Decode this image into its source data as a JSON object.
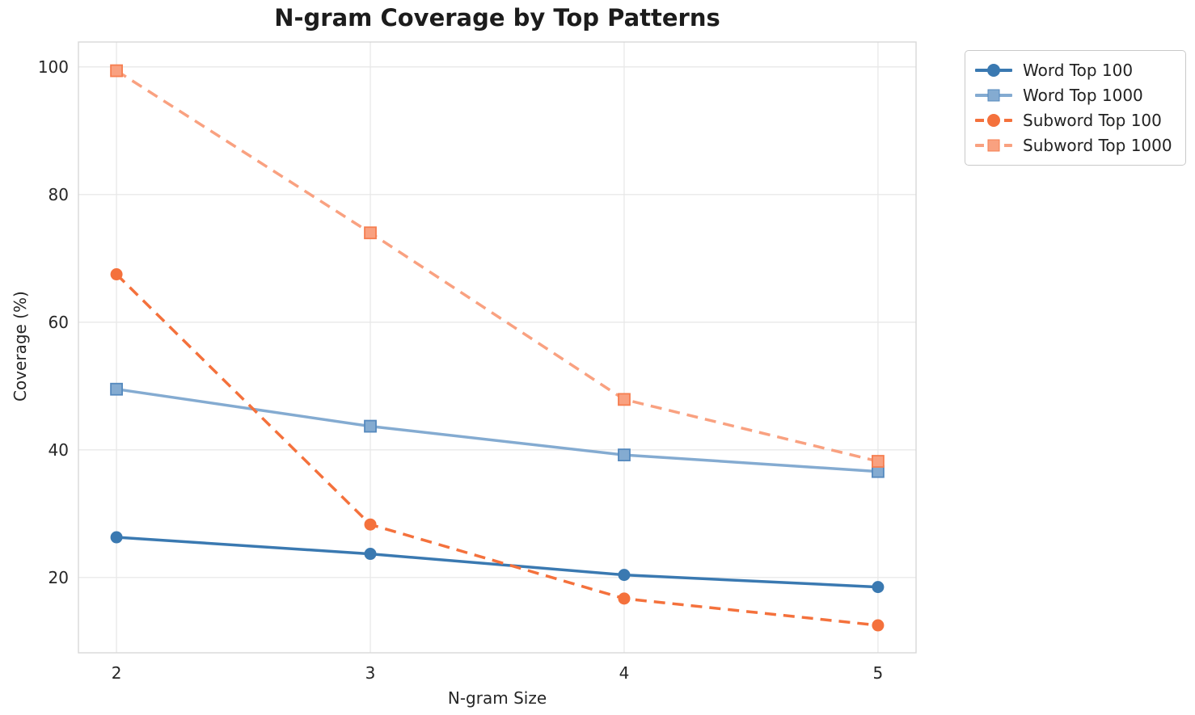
{
  "chart_data": {
    "type": "line",
    "title": "N-gram Coverage by Top Patterns",
    "xlabel": "N-gram Size",
    "ylabel": "Coverage (%)",
    "x": [
      2,
      3,
      4,
      5
    ],
    "xticks": [
      "2",
      "3",
      "4",
      "5"
    ],
    "yticks": [
      "20",
      "40",
      "60",
      "80",
      "100"
    ],
    "ytick_values": [
      20,
      40,
      60,
      80,
      100
    ],
    "xlim": [
      1.85,
      5.15
    ],
    "ylim": [
      8.2,
      103.9
    ],
    "grid": true,
    "legend_position": "outside-upper-right",
    "series": [
      {
        "name": "Word Top 100",
        "values": [
          26.3,
          23.7,
          20.4,
          18.5
        ],
        "color": "#3a79b1",
        "line_style": "solid",
        "marker": "circle"
      },
      {
        "name": "Word Top 1000",
        "values": [
          49.5,
          43.7,
          39.2,
          36.6
        ],
        "color": "#84abd1",
        "edge": "#5589be",
        "line_style": "solid",
        "marker": "square"
      },
      {
        "name": "Subword Top 100",
        "values": [
          67.5,
          28.3,
          16.7,
          12.5
        ],
        "color": "#f4713c",
        "line_style": "dashed",
        "marker": "circle"
      },
      {
        "name": "Subword Top 1000",
        "values": [
          99.4,
          74.0,
          47.9,
          38.2
        ],
        "color": "#f9a180",
        "edge": "#f67e50",
        "line_style": "dashed",
        "marker": "square"
      }
    ]
  },
  "colors": {
    "background": "#ffffff",
    "grid": "#e8e8e8",
    "spine": "#d8d8d8",
    "tick_text": "#262626",
    "title_text": "#1c1c1c"
  }
}
